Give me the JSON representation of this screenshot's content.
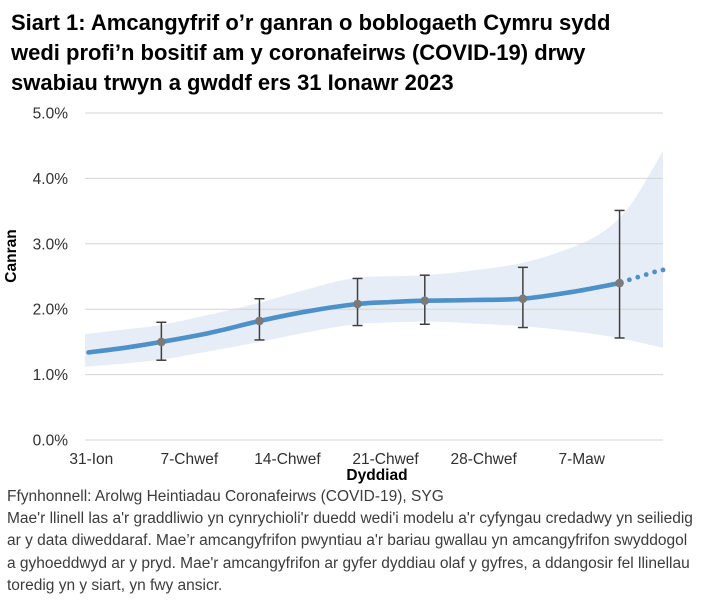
{
  "title": "Siart 1: Amcangyfrif o’r ganran o boblogaeth Cymru sydd\nwedi profi’n bositif am y coronafeirws (COVID-19) drwy\nswabiau trwyn a gwddf ers 31 Ionawr 2023",
  "footer": {
    "source": "Ffynhonnell: Arolwg Heintiadau Coronafeirws (COVID-19), SYG",
    "note": "Mae'r llinell las a'r graddliwio yn cynrychioli'r duedd wedi'i modelu a'r cyfyngau credadwy yn seiliedig\nar y data diweddaraf. Mae’r amcangyfrifon pwyntiau a'r bariau gwallau yn amcangyfrifon swyddogol\na gyhoeddwyd ar y pryd. Mae'r amcangyfrifon ar gyfer dyddiau olaf y gyfres, a ddangosir fel llinellau\ntoredig yn y siart, yn fwy ansicr."
  },
  "chart_data": {
    "type": "line",
    "title": "Siart 1: Amcangyfrif o’r ganran o boblogaeth Cymru sydd wedi profi’n bositif am y coronafeirws (COVID-19) drwy swabiau trwyn a gwddf ers 31 Ionawr 2023",
    "xlabel": "Dyddiad",
    "ylabel": "Canran",
    "ylim": [
      0,
      5
    ],
    "yticks": [
      0,
      1,
      2,
      3,
      4,
      5
    ],
    "ytick_labels": [
      "0.0%",
      "1.0%",
      "2.0%",
      "3.0%",
      "4.0%",
      "5.0%"
    ],
    "x_unit": "days_since_31_Ionawr_2023",
    "x_domain_days": [
      -0.45,
      40.8
    ],
    "xticks_days": [
      0,
      7,
      14,
      21,
      28,
      35
    ],
    "xtick_labels": [
      "31-Ion",
      "7-Chwef",
      "14-Chwef",
      "21-Chwef",
      "28-Chwef",
      "7-Maw"
    ],
    "grid": "horizontal",
    "legend": "none",
    "modelled_trend_solid": {
      "days": [
        -0.2,
        2.4,
        5.0,
        8.5,
        12.0,
        15.5,
        19.0,
        21.4,
        23.8,
        27.3,
        30.8,
        34.2,
        37.7
      ],
      "values": [
        1.34,
        1.41,
        1.5,
        1.64,
        1.82,
        1.97,
        2.08,
        2.11,
        2.13,
        2.14,
        2.16,
        2.26,
        2.4
      ]
    },
    "modelled_trend_dotted": {
      "days": [
        38.4,
        39.0,
        39.6,
        40.2,
        40.8
      ],
      "values": [
        2.45,
        2.49,
        2.53,
        2.57,
        2.6
      ]
    },
    "credible_interval_band": {
      "days": [
        -0.45,
        2.4,
        5.0,
        8.5,
        12.0,
        15.5,
        19.0,
        23.8,
        27.5,
        30.8,
        34.0,
        36.5,
        38.5,
        40.8
      ],
      "upper": [
        1.62,
        1.69,
        1.76,
        1.92,
        2.1,
        2.31,
        2.48,
        2.52,
        2.6,
        2.71,
        2.92,
        3.18,
        3.6,
        4.42
      ],
      "lower": [
        1.12,
        1.17,
        1.23,
        1.36,
        1.5,
        1.65,
        1.77,
        1.81,
        1.78,
        1.74,
        1.67,
        1.6,
        1.52,
        1.41
      ]
    },
    "official_point_estimates": {
      "days": [
        5.0,
        12.0,
        19.0,
        23.8,
        30.8,
        37.7
      ],
      "values": [
        1.5,
        1.82,
        2.08,
        2.13,
        2.16,
        2.4
      ],
      "upper": [
        1.8,
        2.16,
        2.47,
        2.52,
        2.64,
        3.51
      ],
      "lower": [
        1.22,
        1.53,
        1.75,
        1.77,
        1.72,
        1.56
      ]
    },
    "colors": {
      "trend": "#4e91c8",
      "band": "#e7edf7",
      "point": "#7a7a7a",
      "error_bar": "#3f3f3f",
      "gridline": "#d4d4d4",
      "tick_text": "#303030"
    }
  }
}
